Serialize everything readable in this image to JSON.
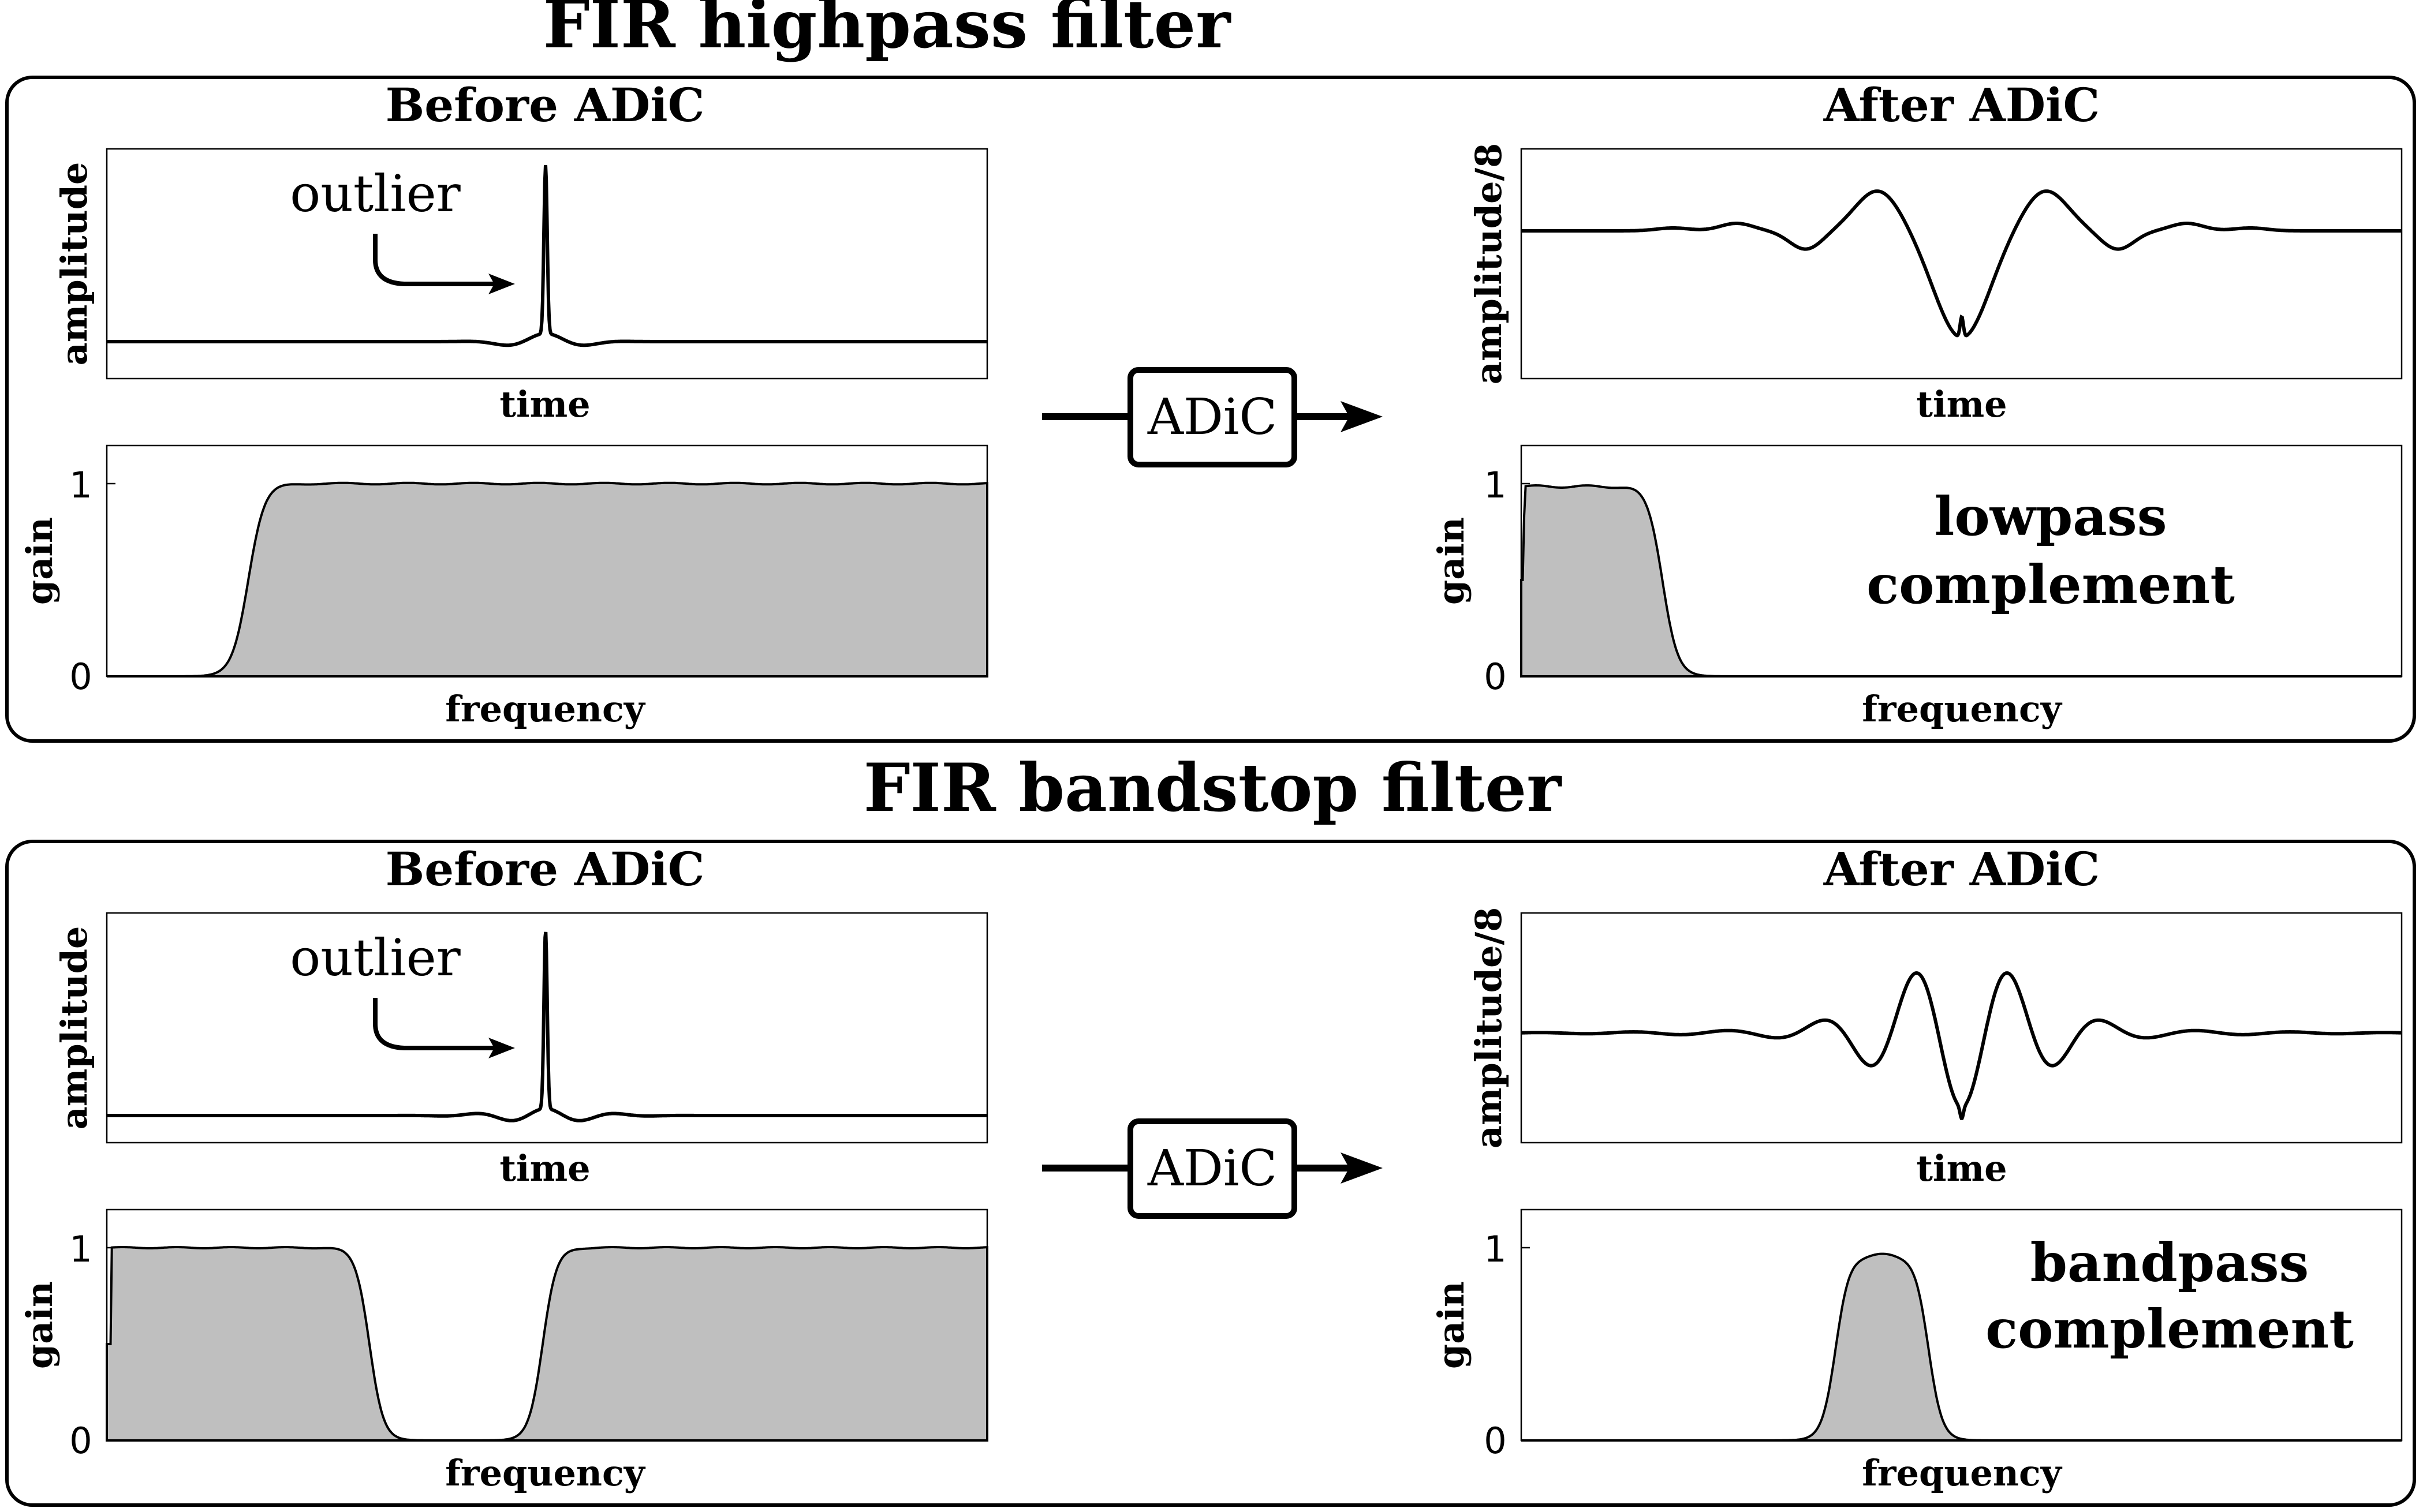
{
  "colors": {
    "stroke": "#000000",
    "fill": "#bfbfbf",
    "background": "#ffffff"
  },
  "panels": [
    {
      "title": "FIR highpass filter",
      "before_title": "Before ADiC",
      "after_title": "After ADiC",
      "annotation": "outlier",
      "process_label": "ADiC",
      "before_time_ylabel": "amplitude",
      "after_time_ylabel": "amplitude/8",
      "time_xlabel": "time",
      "gain_ylabel": "gain",
      "freq_xlabel": "frequency",
      "gain_ticks": [
        "0",
        "1"
      ],
      "complement_line1": "lowpass",
      "complement_line2": "complement",
      "filter_kind": "highpass",
      "complement_kind": "lowpass",
      "arrow_icon": "right-arrow-icon"
    },
    {
      "title": "FIR bandstop filter",
      "before_title": "Before ADiC",
      "after_title": "After ADiC",
      "annotation": "outlier",
      "process_label": "ADiC",
      "before_time_ylabel": "amplitude",
      "after_time_ylabel": "amplitude/8",
      "time_xlabel": "time",
      "gain_ylabel": "gain",
      "freq_xlabel": "frequency",
      "gain_ticks": [
        "0",
        "1"
      ],
      "complement_line1": "bandpass",
      "complement_line2": "complement",
      "filter_kind": "bandstop",
      "complement_kind": "bandpass",
      "arrow_icon": "right-arrow-icon"
    }
  ]
}
